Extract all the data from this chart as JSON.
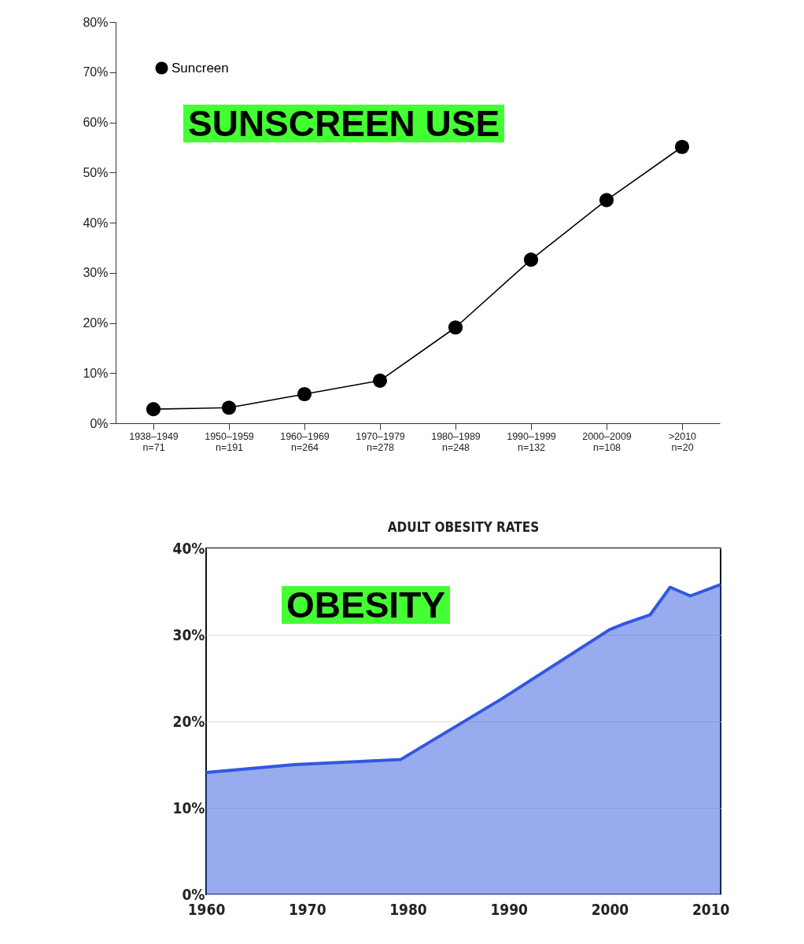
{
  "chart_data": [
    {
      "type": "line",
      "categories": [
        "1938–1949\nn=71",
        "1950–1959\nn=191",
        "1960–1969\nn=264",
        "1970–1979\nn=278",
        "1980–1989\nn=248",
        "1990–1999\nn=132",
        "2000–2009\nn=108",
        ">2010\nn=20"
      ],
      "series": [
        {
          "name": "Suncreen",
          "color": "#000000",
          "values": [
            2.8,
            3.1,
            5.8,
            8.5,
            19.1,
            32.6,
            44.5,
            55.1
          ]
        }
      ],
      "ylim": [
        0,
        80
      ],
      "yticks": [
        {
          "value": 0,
          "label": "0%"
        },
        {
          "value": 10,
          "label": "10%"
        },
        {
          "value": 20,
          "label": "20%"
        },
        {
          "value": 30,
          "label": "30%"
        },
        {
          "value": 40,
          "label": "40%"
        },
        {
          "value": 50,
          "label": "50%"
        },
        {
          "value": 60,
          "label": "60%"
        },
        {
          "value": 70,
          "label": "70%"
        },
        {
          "value": 80,
          "label": "80%"
        }
      ],
      "marker": "circle",
      "legend": "top left",
      "grid": false,
      "annotations": [
        "SUNSCREEN USE"
      ]
    },
    {
      "type": "area",
      "title": "ADULT OBESITY RATES",
      "x": [
        1960,
        1968.7,
        1979.3,
        1989.3,
        2000,
        2001.5,
        2004,
        2006,
        2008,
        2011
      ],
      "series": [
        {
          "color": "#3158e0",
          "values": [
            14.1,
            15.0,
            15.6,
            22.6,
            30.6,
            31.3,
            32.3,
            35.5,
            34.5,
            35.8
          ]
        }
      ],
      "xlim": [
        1960,
        2011
      ],
      "xticks": [
        1960,
        1970,
        1980,
        1990,
        2000,
        2010
      ],
      "ylim": [
        0,
        40
      ],
      "yticks": [
        {
          "value": 0,
          "label": "0%"
        },
        {
          "value": 10,
          "label": "10%"
        },
        {
          "value": 20,
          "label": "20%"
        },
        {
          "value": 30,
          "label": "30%"
        },
        {
          "value": 40,
          "label": "40%"
        }
      ],
      "grid": "y",
      "annotations": [
        "OBESITY"
      ]
    }
  ]
}
